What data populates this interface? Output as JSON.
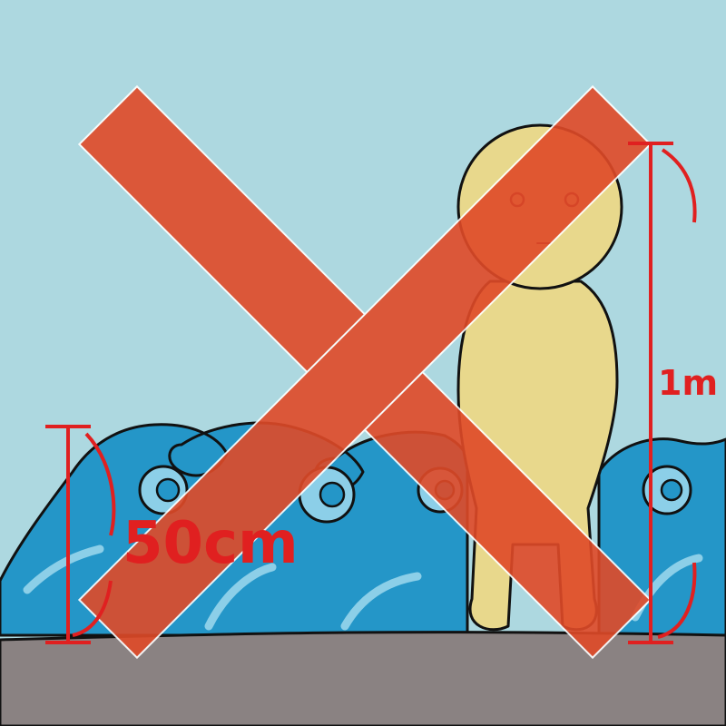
{
  "labels": {
    "height_person": "1m",
    "height_wave": "50cm"
  },
  "colors": {
    "sky": "#add8e0",
    "ground": "#8a8282",
    "wave": "#2496c8",
    "wave_highlight": "#8ccfe8",
    "person": "#e8d88c",
    "marker_red": "#e02020",
    "cross": "#e04a28"
  },
  "icons": [
    "person-figure",
    "wave-illustration",
    "cross-mark",
    "measurement-bracket"
  ]
}
